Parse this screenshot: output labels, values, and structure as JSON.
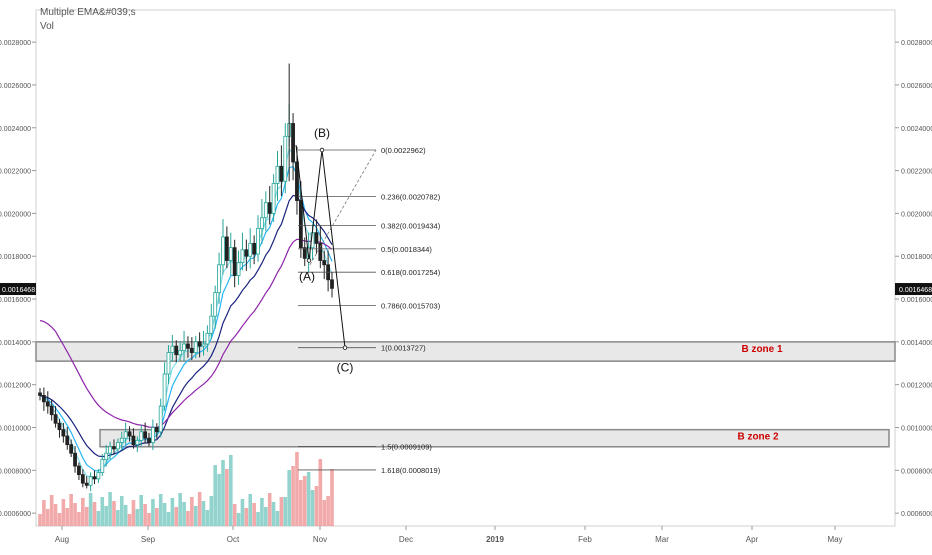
{
  "indicator": {
    "title": "Multiple EMA&#039;s",
    "volume_label": "Vol"
  },
  "colors": {
    "up": "#26a69a",
    "down": "#222222",
    "ema_fast": "#80deea",
    "ema_mid": "#29b6f6",
    "ema_slow": "#1a237e",
    "ema_long": "#8e24aa",
    "vol_up": "#80cbc4",
    "vol_down": "#ef9a9a",
    "zone_fill": "#e8e8e8",
    "zone_stroke": "#888888",
    "zone_label": "#cc0000",
    "price_tag_bg": "#111111",
    "price_tag_fg": "#ffffff"
  },
  "chart_data": {
    "type": "candlestick",
    "x_ticks": [
      "Aug",
      "Sep",
      "Oct",
      "Nov",
      "Dec",
      "2019",
      "Feb",
      "Mar",
      "Apr",
      "May"
    ],
    "y_ticks": [
      "0.0006000",
      "0.0008000",
      "0.0010000",
      "0.0012000",
      "0.0014000",
      "0.0016000",
      "0.0018000",
      "0.0020000",
      "0.0022000",
      "0.0024000",
      "0.0026000",
      "0.0028000"
    ],
    "ylim": [
      0.00054,
      0.00295
    ],
    "current_price": "0.0016468",
    "fib_levels": [
      {
        "label": "0(0.0022962)",
        "price": 0.0022962
      },
      {
        "label": "0.236(0.0020782)",
        "price": 0.0020782
      },
      {
        "label": "0.382(0.0019434)",
        "price": 0.0019434
      },
      {
        "label": "0.5(0.0018344)",
        "price": 0.0018344
      },
      {
        "label": "0.618(0.0017254)",
        "price": 0.0017254
      },
      {
        "label": "0.786(0.0015703)",
        "price": 0.0015703
      },
      {
        "label": "1(0.0013727)",
        "price": 0.0013727
      },
      {
        "label": "1.5(0.0009109)",
        "price": 0.0009109
      },
      {
        "label": "1.618(0.0008019)",
        "price": 0.0008019
      }
    ],
    "wave_labels": [
      "(A)",
      "(B)",
      "(C)"
    ],
    "zones": [
      {
        "label": "B zone 1",
        "low": 0.00131,
        "high": 0.0014
      },
      {
        "label": "B zone 2",
        "low": 0.00091,
        "high": 0.00099
      }
    ],
    "close_series": [
      0.00115,
      0.00112,
      0.0011,
      0.00106,
      0.00102,
      0.00099,
      0.00096,
      0.00092,
      0.00088,
      0.00082,
      0.00078,
      0.00074,
      0.00073,
      0.00077,
      0.00076,
      0.00079,
      0.00085,
      0.00088,
      0.00091,
      0.0009,
      0.00093,
      0.00095,
      0.00098,
      0.00096,
      0.00092,
      0.00094,
      0.00098,
      0.00095,
      0.00093,
      0.001,
      0.00098,
      0.0011,
      0.00125,
      0.00135,
      0.00138,
      0.00134,
      0.00136,
      0.00139,
      0.00137,
      0.00135,
      0.0014,
      0.00138,
      0.00139,
      0.00144,
      0.00152,
      0.00163,
      0.00176,
      0.00189,
      0.00178,
      0.00184,
      0.00171,
      0.00177,
      0.00183,
      0.0018,
      0.00186,
      0.00181,
      0.00193,
      0.00198,
      0.00205,
      0.002,
      0.00214,
      0.00222,
      0.00215,
      0.00236,
      0.00242,
      0.00224,
      0.00206,
      0.00184,
      0.00179,
      0.00184,
      0.00191,
      0.00186,
      0.00178,
      0.00176,
      0.00169,
      0.00165
    ]
  }
}
